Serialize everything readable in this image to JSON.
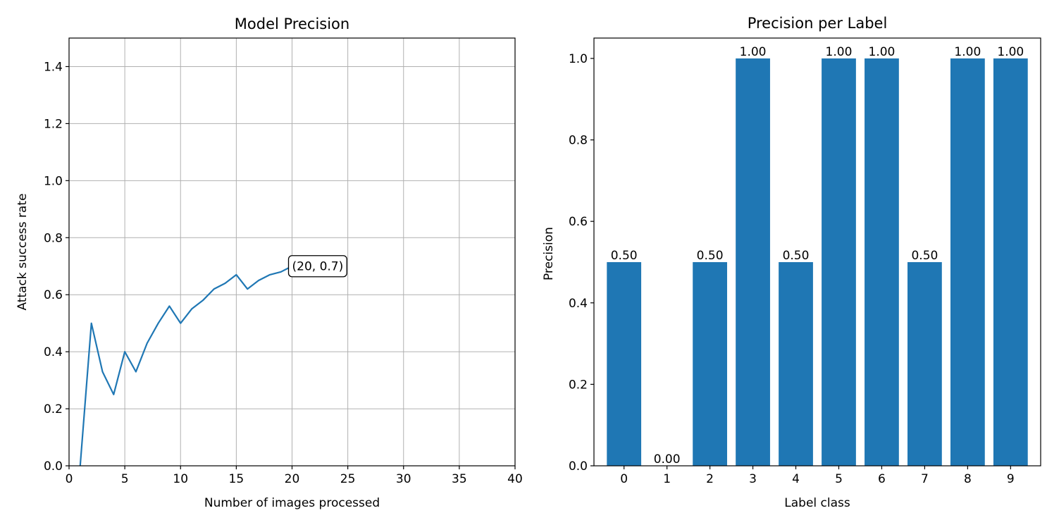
{
  "chart_data": [
    {
      "type": "line",
      "title": "Model Precision",
      "xlabel": "Number of images processed",
      "ylabel": "Attack success rate",
      "xlim": [
        0,
        40
      ],
      "ylim": [
        0,
        1.5
      ],
      "xticks": [
        "0",
        "5",
        "10",
        "15",
        "20",
        "25",
        "30",
        "35",
        "40"
      ],
      "yticks": [
        "0.0",
        "0.2",
        "0.4",
        "0.6",
        "0.8",
        "1.0",
        "1.2",
        "1.4"
      ],
      "grid": true,
      "line_color": "#1f77b4",
      "series": [
        {
          "x": [
            1,
            2,
            3,
            4,
            5,
            6,
            7,
            8,
            9,
            10,
            11,
            12,
            13,
            14,
            15,
            16,
            17,
            18,
            19,
            20
          ],
          "y": [
            0.0,
            0.5,
            0.33,
            0.25,
            0.4,
            0.33,
            0.43,
            0.5,
            0.56,
            0.5,
            0.55,
            0.58,
            0.62,
            0.64,
            0.67,
            0.62,
            0.65,
            0.67,
            0.68,
            0.7
          ]
        }
      ],
      "annotation": {
        "text": "(20, 0.7)",
        "x": 20,
        "y": 0.7
      }
    },
    {
      "type": "bar",
      "title": "Precision per Label",
      "xlabel": "Label class",
      "ylabel": "Precision",
      "categories": [
        "0",
        "1",
        "2",
        "3",
        "4",
        "5",
        "6",
        "7",
        "8",
        "9"
      ],
      "values": [
        0.5,
        0.0,
        0.5,
        1.0,
        0.5,
        1.0,
        1.0,
        0.5,
        1.0,
        1.0
      ],
      "value_labels": [
        "0.50",
        "0.00",
        "0.50",
        "1.00",
        "0.50",
        "1.00",
        "1.00",
        "0.50",
        "1.00",
        "1.00"
      ],
      "ylim": [
        0,
        1.05
      ],
      "yticks": [
        "0.0",
        "0.2",
        "0.4",
        "0.6",
        "0.8",
        "1.0"
      ],
      "grid": false,
      "bar_color": "#1f77b4"
    }
  ]
}
